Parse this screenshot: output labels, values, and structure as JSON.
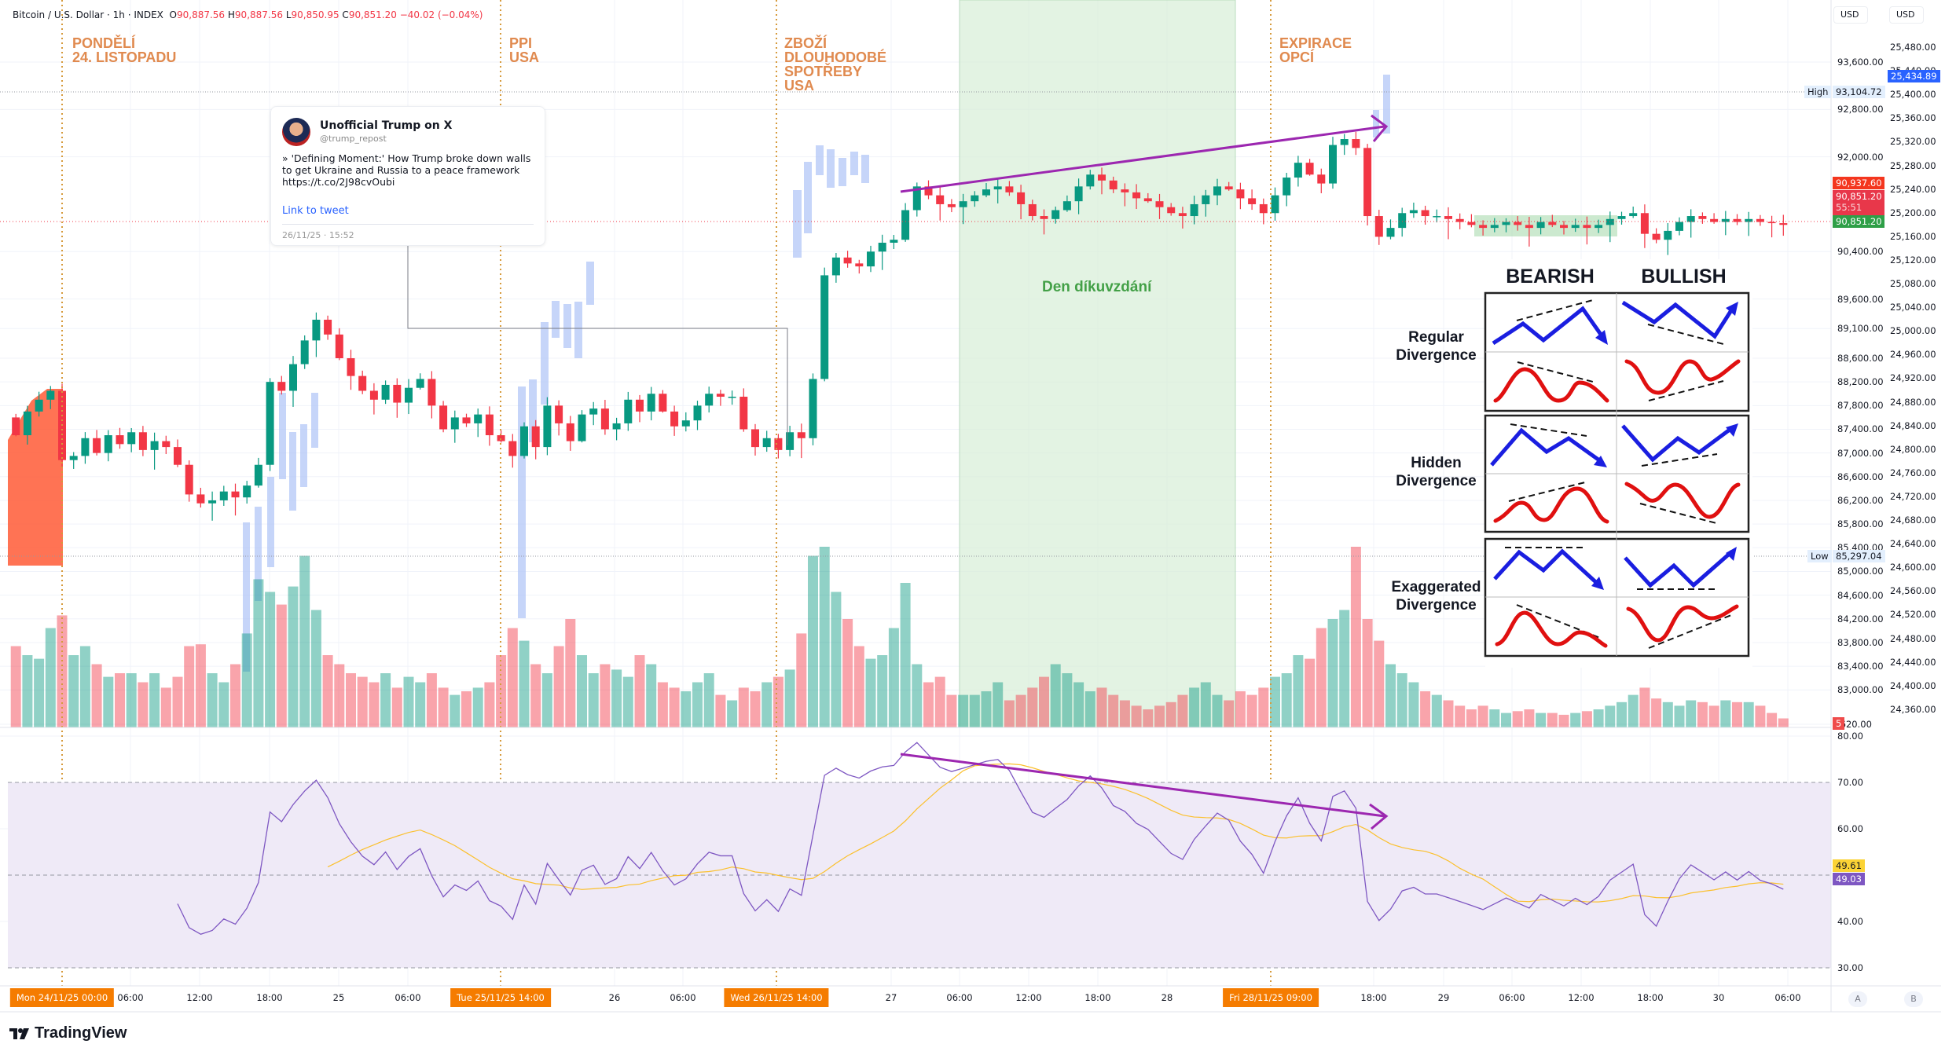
{
  "legend": {
    "symbol": "Bitcoin / U.S. Dollar · 1h · INDEX",
    "o_label": "O",
    "o": "90,887.56",
    "h_label": "H",
    "h": "90,887.56",
    "l_label": "L",
    "l": "90,850.95",
    "c_label": "C",
    "c": "90,851.20",
    "change": "−40.02 (−0.04%)"
  },
  "events": [
    {
      "label": "PONDĚLÍ\n24. LISTOPADU"
    },
    {
      "label": "PPI\nUSA"
    },
    {
      "label": "ZBOŽÍ\nDLOUHODOBÉ\nSPOTŘEBY\nUSA"
    },
    {
      "label": "EXPIRACE\nOPCÍ"
    }
  ],
  "holiday_label": "Den díkuvzdání",
  "tweet": {
    "name": "Unofficial Trump on X",
    "handle": "@trump_repost",
    "text": "» 'Defining Moment:' How Trump broke down walls to get Ukraine and Russia to a peace framework https://t.co/2J98cvOubi",
    "link": "Link to tweet",
    "timestamp": "26/11/25 · 15:52"
  },
  "divergence_chart": {
    "headers": [
      "BEARISH",
      "BULLISH"
    ],
    "rows": [
      "Regular\nDivergence",
      "Hidden\nDivergence",
      "Exaggerated\nDivergence"
    ]
  },
  "currency_buttons": [
    "USD",
    "USD"
  ],
  "price_tags": {
    "high_label": "High",
    "high": "93,104.72",
    "low_label": "Low",
    "low": "85,297.04",
    "bid": "90,937.60",
    "last": "90,851.20",
    "countdown": "55:51",
    "close": "90,851.20",
    "secondary": "25,434.89",
    "volume_tag": "5"
  },
  "rsi_tags": {
    "ma": "49.61",
    "rsi": "49.03"
  },
  "bottom_buttons": [
    "A",
    "B"
  ],
  "time_axis": {
    "labels": [
      "06:00",
      "12:00",
      "18:00",
      "25",
      "06:00",
      "26",
      "06:00",
      "27",
      "06:00",
      "12:00",
      "18:00",
      "28",
      "18:00",
      "29",
      "06:00",
      "12:00",
      "18:00",
      "30",
      "06:00"
    ],
    "tags": [
      "Mon 24/11/25   00:00",
      "Tue 25/11/25   14:00",
      "Wed 26/11/25   14:00",
      "Fri 28/11/25   09:00"
    ]
  },
  "brand": "TradingView",
  "colors": {
    "up": "#089981",
    "down": "#f23645",
    "event": "#e08a4f",
    "holiday": "#d8eed8",
    "trendline": "#9c27b0",
    "rsi": "#7e57c2",
    "rsi_ma": "#fbc02d",
    "rsi_band": "#efeaf7"
  },
  "chart_data": {
    "type": "candlestick",
    "title": "Bitcoin / U.S. Dollar · 1h · INDEX",
    "price_axis": {
      "ticks": [
        "93,600.00",
        "92,800.00",
        "92,000.00",
        "90,400.00",
        "89,600.00",
        "89,100.00",
        "88,600.00",
        "88,200.00",
        "87,800.00",
        "87,400.00",
        "87,000.00",
        "86,600.00",
        "86,200.00",
        "85,800.00",
        "85,400.00",
        "85,000.00",
        "84,600.00",
        "84,200.00",
        "83,800.00",
        "83,400.00",
        "83,000.00",
        ",620.00"
      ],
      "range": [
        82620,
        93600
      ]
    },
    "secondary_axis": {
      "ticks": [
        "25,480.00",
        "25,440.00",
        "25,400.00",
        "25,360.00",
        "25,320.00",
        "25,280.00",
        "25,240.00",
        "25,200.00",
        "25,160.00",
        "25,120.00",
        "25,080.00",
        "25,040.00",
        "25,000.00",
        "24,960.00",
        "24,920.00",
        "24,880.00",
        "24,840.00",
        "24,800.00",
        "24,760.00",
        "24,720.00",
        "24,680.00",
        "24,640.00",
        "24,600.00",
        "24,560.00",
        "24,520.00",
        "24,480.00",
        "24,440.00",
        "24,400.00",
        "24,360.00"
      ]
    },
    "rsi_axis": {
      "ticks": [
        "80.00",
        "70.00",
        "60.00",
        "40.00",
        "30.00"
      ],
      "range": [
        30,
        80
      ],
      "band": [
        30,
        70
      ]
    },
    "closes": [
      87300,
      87700,
      87900,
      88050,
      86880,
      86950,
      87250,
      87000,
      87300,
      87150,
      87350,
      87050,
      87200,
      87100,
      86800,
      86300,
      86150,
      86200,
      86350,
      86250,
      86450,
      86800,
      88200,
      88050,
      88500,
      88900,
      89250,
      89000,
      88600,
      88300,
      88050,
      87900,
      88150,
      87850,
      88100,
      88250,
      87800,
      87400,
      87600,
      87500,
      87650,
      87300,
      87200,
      86950,
      87450,
      87100,
      87800,
      87500,
      87200,
      87650,
      87750,
      87400,
      87500,
      87900,
      87700,
      88000,
      87700,
      87450,
      87550,
      87800,
      88000,
      87950,
      87950,
      87400,
      87100,
      87250,
      87050,
      87350,
      87250,
      88250,
      90000,
      90300,
      90200,
      90150,
      90400,
      90550,
      90600,
      91100,
      91500,
      91350,
      91200,
      91150,
      91250,
      91350,
      91450,
      91500,
      91400,
      91200,
      91000,
      90950,
      91100,
      91250,
      91500,
      91700,
      91600,
      91450,
      91400,
      91300,
      91250,
      91150,
      91050,
      91000,
      91200,
      91350,
      91500,
      91450,
      91300,
      91200,
      91050,
      91350,
      91650,
      91900,
      91700,
      91550,
      92200,
      92300,
      92150,
      91000,
      90650,
      90800,
      91050,
      91100,
      91000,
      91000,
      90950,
      90900,
      90850,
      90800,
      90850,
      90900,
      90850,
      90800,
      90900,
      90850,
      90800,
      90850,
      90800,
      90850,
      90950,
      91000,
      91050,
      90700,
      90600,
      90750,
      90900,
      91000,
      90950,
      90900,
      90950,
      90900,
      90950,
      90900,
      90880,
      90851.2
    ],
    "volume_relative": [
      45,
      40,
      38,
      55,
      62,
      40,
      45,
      35,
      28,
      30,
      30,
      25,
      30,
      22,
      28,
      45,
      46,
      30,
      25,
      35,
      52,
      82,
      75,
      68,
      78,
      95,
      65,
      40,
      35,
      30,
      28,
      25,
      30,
      22,
      28,
      25,
      30,
      22,
      18,
      20,
      22,
      25,
      40,
      55,
      48,
      35,
      30,
      45,
      60,
      40,
      30,
      35,
      32,
      28,
      40,
      35,
      25,
      22,
      20,
      25,
      30,
      18,
      15,
      22,
      20,
      25,
      28,
      32,
      52,
      95,
      100,
      75,
      60,
      45,
      38,
      40,
      55,
      80,
      35,
      25,
      28,
      18,
      18,
      18,
      20,
      25,
      15,
      18,
      22,
      28,
      35,
      30,
      25,
      20,
      22,
      18,
      15,
      12,
      10,
      12,
      14,
      18,
      22,
      25,
      18,
      15,
      20,
      18,
      22,
      28,
      30,
      40,
      38,
      55,
      60,
      65,
      100,
      60,
      48,
      35,
      30,
      25,
      20,
      18,
      15,
      12,
      10,
      12,
      10,
      8,
      9,
      10,
      8,
      8,
      7,
      8,
      9,
      10,
      12,
      14,
      18,
      22,
      16,
      14,
      12,
      15,
      14,
      12,
      15,
      14,
      14,
      12,
      8,
      5
    ],
    "indicator": "RSI",
    "rsi_last": 49.03,
    "rsi_ma_last": 49.61
  }
}
